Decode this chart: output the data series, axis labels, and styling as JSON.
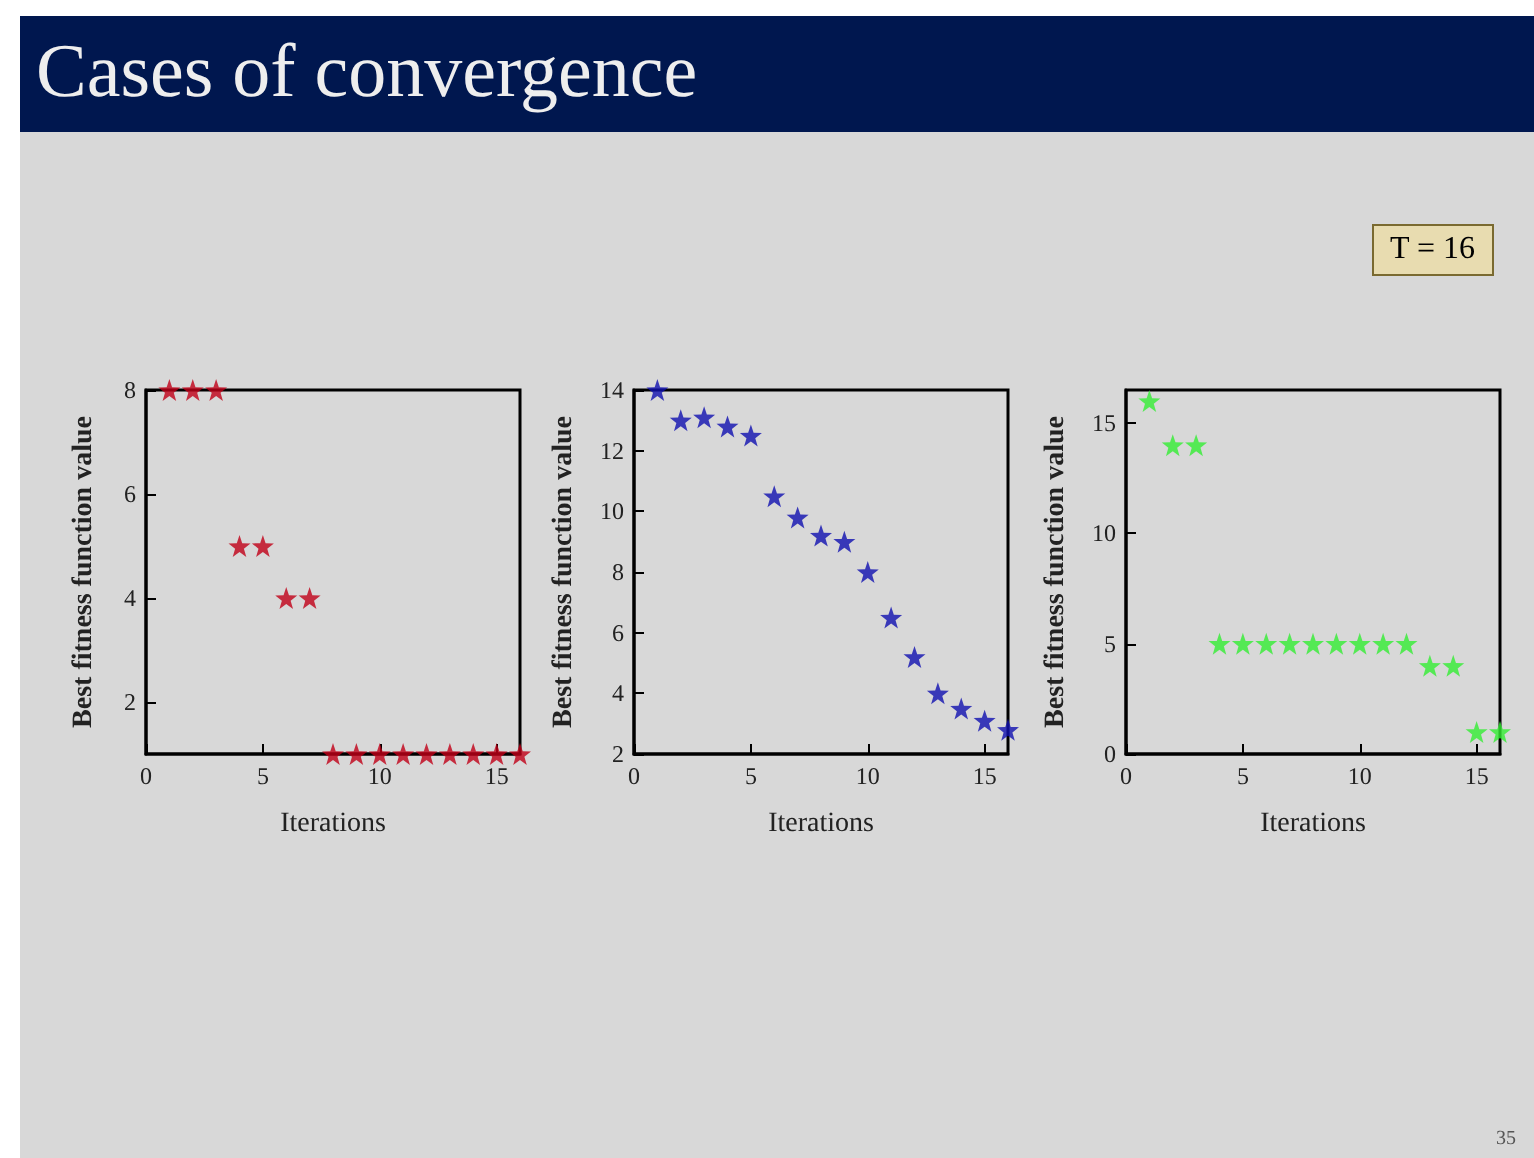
{
  "chart_data": [
    {
      "type": "scatter",
      "title": "Cases of convergence",
      "xlabel": "Iterations",
      "ylabel": "Best fitness function value",
      "x": [
        1,
        2,
        3,
        4,
        5,
        6,
        7,
        8,
        9,
        10,
        11,
        12,
        13,
        14,
        15,
        16
      ],
      "values": [
        8,
        8,
        8,
        5,
        5,
        4,
        4,
        1,
        1,
        1,
        1,
        1,
        1,
        1,
        1,
        1
      ],
      "color": "#c00018",
      "marker": "star",
      "xlim": [
        0,
        16
      ],
      "xticks": [
        0,
        5,
        10,
        15
      ],
      "ylim": [
        1,
        8
      ],
      "yticks": [
        2,
        4,
        6,
        8
      ]
    },
    {
      "type": "scatter",
      "xlabel": "Iterations",
      "ylabel": "Best fitness function value",
      "x": [
        1,
        2,
        3,
        4,
        5,
        6,
        7,
        8,
        9,
        10,
        11,
        12,
        13,
        14,
        15,
        16
      ],
      "values": [
        14,
        13,
        13.1,
        12.8,
        12.5,
        10.5,
        9.8,
        9.2,
        9,
        8,
        6.5,
        5.2,
        4,
        3.5,
        3.1,
        2.8
      ],
      "color": "#1010b0",
      "marker": "star",
      "xlim": [
        0,
        16
      ],
      "xticks": [
        0,
        5,
        10,
        15
      ],
      "ylim": [
        2,
        14
      ],
      "yticks": [
        2,
        4,
        6,
        8,
        10,
        12,
        14
      ]
    },
    {
      "type": "scatter",
      "xlabel": "Iterations",
      "ylabel": "Best fitness function value",
      "x": [
        1,
        2,
        3,
        4,
        5,
        6,
        7,
        8,
        9,
        10,
        11,
        12,
        13,
        14,
        15,
        16
      ],
      "values": [
        16,
        14,
        14,
        5,
        5,
        5,
        5,
        5,
        5,
        5,
        5,
        5,
        4,
        4,
        1,
        1
      ],
      "color": "#33ee33",
      "marker": "star",
      "xlim": [
        0,
        16
      ],
      "xticks": [
        0,
        5,
        10,
        15
      ],
      "ylim": [
        0,
        16.5
      ],
      "yticks": [
        0,
        5,
        10,
        15
      ],
      "annotations": [
        "T = 16",
        "35"
      ]
    }
  ]
}
